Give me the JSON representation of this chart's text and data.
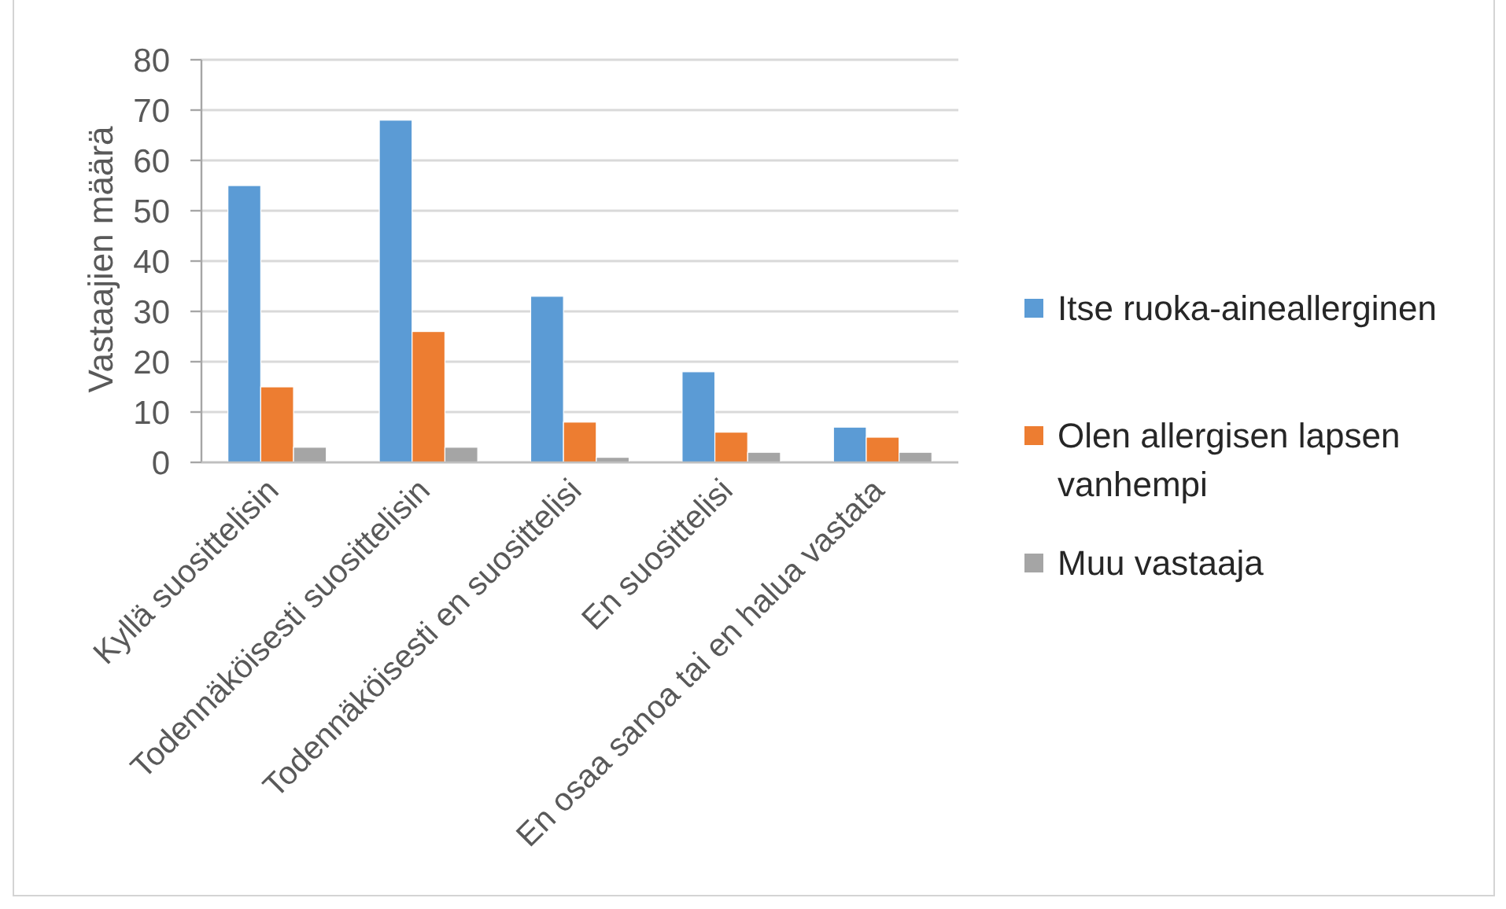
{
  "chart_data": {
    "type": "bar",
    "ylabel": "Vastaajien määrä",
    "categories": [
      "Kyllä suosittelisin",
      "Todennäköisesti suosittelisin",
      "Todennäköisesti en suosittelisi",
      "En suosittelisi",
      "En osaa sanoa tai en halua vastata"
    ],
    "series": [
      {
        "name": "Itse ruoka-aineallerginen",
        "color": "#5b9bd5",
        "values": [
          55,
          68,
          33,
          18,
          7
        ]
      },
      {
        "name": "Olen allergisen lapsen vanhempi",
        "color": "#ed7d31",
        "values": [
          15,
          26,
          8,
          6,
          5
        ]
      },
      {
        "name": "Muu vastaaja",
        "color": "#a5a5a5",
        "values": [
          3,
          3,
          1,
          2,
          2
        ]
      }
    ],
    "ylim": [
      0,
      80
    ],
    "yticks": [
      0,
      10,
      20,
      30,
      40,
      50,
      60,
      70,
      80
    ],
    "grid": "y",
    "legend": "right"
  }
}
